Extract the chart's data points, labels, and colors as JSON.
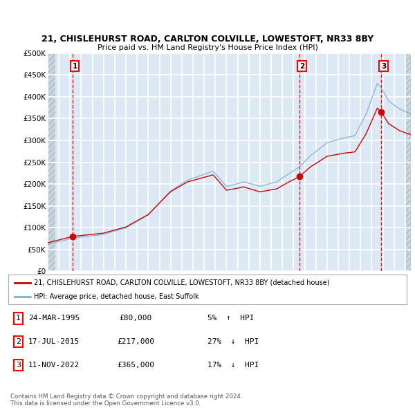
{
  "title1": "21, CHISLEHURST ROAD, CARLTON COLVILLE, LOWESTOFT, NR33 8BY",
  "title2": "Price paid vs. HM Land Registry's House Price Index (HPI)",
  "ylabel_ticks": [
    "£0",
    "£50K",
    "£100K",
    "£150K",
    "£200K",
    "£250K",
    "£300K",
    "£350K",
    "£400K",
    "£450K",
    "£500K"
  ],
  "ytick_values": [
    0,
    50000,
    100000,
    150000,
    200000,
    250000,
    300000,
    350000,
    400000,
    450000,
    500000
  ],
  "xlim_start": 1993.0,
  "xlim_end": 2025.5,
  "ylim": [
    0,
    500000
  ],
  "background_color": "#dce9f5",
  "grid_color": "#ffffff",
  "legend_label_red": "21, CHISLEHURST ROAD, CARLTON COLVILLE, LOWESTOFT, NR33 8BY (detached house)",
  "legend_label_blue": "HPI: Average price, detached house, East Suffolk",
  "footer": "Contains HM Land Registry data © Crown copyright and database right 2024.\nThis data is licensed under the Open Government Licence v3.0.",
  "transactions": [
    {
      "num": 1,
      "date": "24-MAR-1995",
      "price": 80000,
      "pct": "5%",
      "dir": "↑",
      "year": 1995.23
    },
    {
      "num": 2,
      "date": "17-JUL-2015",
      "price": 217000,
      "pct": "27%",
      "dir": "↓",
      "year": 2015.54
    },
    {
      "num": 3,
      "date": "11-NOV-2022",
      "price": 365000,
      "pct": "17%",
      "dir": "↓",
      "year": 2022.86
    }
  ],
  "hatch_left_end": 1993.7,
  "hatch_right_start": 2025.0,
  "red_line_color": "#cc0000",
  "blue_line_color": "#7bafd4",
  "vline_color": "#dd0000",
  "dot_color": "#cc0000"
}
